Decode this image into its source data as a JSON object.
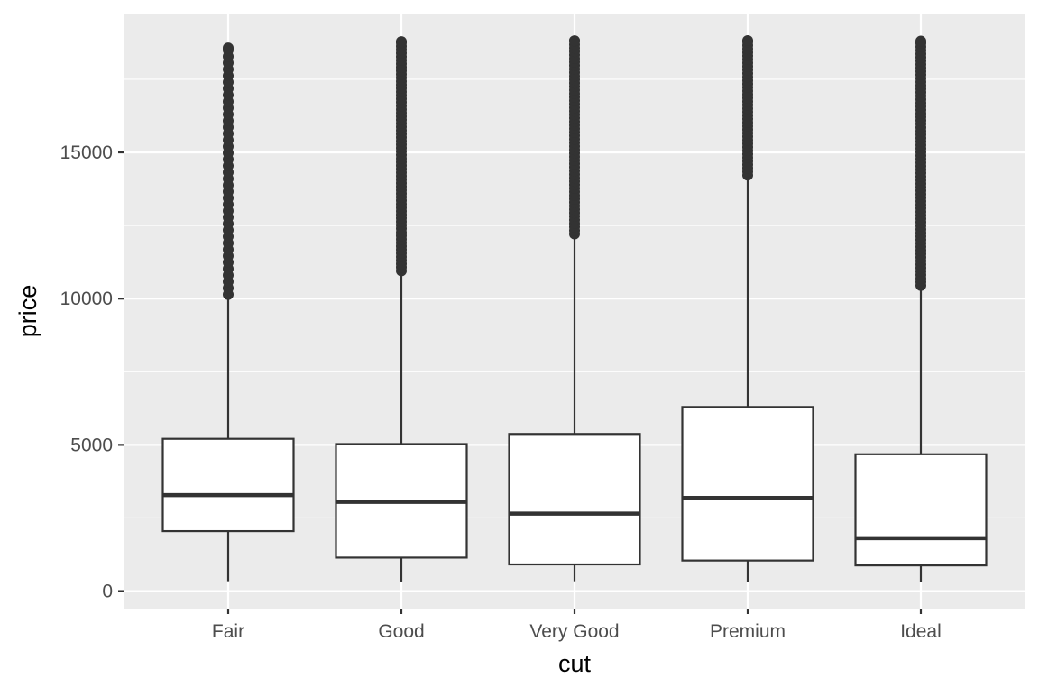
{
  "chart_data": {
    "type": "boxplot",
    "xlabel": "cut",
    "ylabel": "price",
    "categories": [
      "Fair",
      "Good",
      "Very Good",
      "Premium",
      "Ideal"
    ],
    "ylim": [
      -599,
      19748
    ],
    "yticks": [
      0,
      5000,
      10000,
      15000
    ],
    "ytick_labels": [
      "0",
      "5000",
      "10000",
      "15000"
    ],
    "grid": true,
    "colors": {
      "panel": "#EBEBEB",
      "grid": "#FFFFFF",
      "box_line": "#333333",
      "box_fill": "#FFFFFF",
      "outlier": "#333333"
    },
    "boxes": [
      {
        "category": "Fair",
        "lower_whisker": 337,
        "q1": 2050,
        "median": 3282,
        "q3": 5206,
        "upper_whisker": 9990,
        "outlier_max": 18574
      },
      {
        "category": "Good",
        "lower_whisker": 327,
        "q1": 1145,
        "median": 3051,
        "q3": 5028,
        "upper_whisker": 10800,
        "outlier_max": 18788
      },
      {
        "category": "Very Good",
        "lower_whisker": 336,
        "q1": 912,
        "median": 2648,
        "q3": 5373,
        "upper_whisker": 12060,
        "outlier_max": 18818
      },
      {
        "category": "Premium",
        "lower_whisker": 326,
        "q1": 1046,
        "median": 3185,
        "q3": 6296,
        "upper_whisker": 14070,
        "outlier_max": 18823
      },
      {
        "category": "Ideal",
        "lower_whisker": 326,
        "q1": 878,
        "median": 1810,
        "q3": 4679,
        "upper_whisker": 10300,
        "outlier_max": 18806
      }
    ]
  }
}
